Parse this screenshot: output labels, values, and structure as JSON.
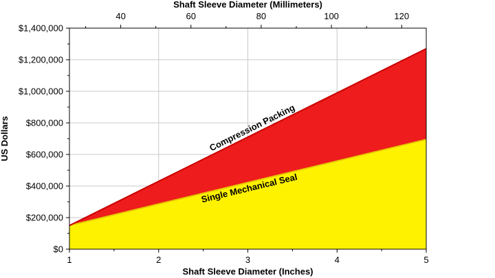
{
  "chart_data": {
    "type": "area",
    "xlabel": "Shaft Sleeve Diameter (Inches)",
    "x2label": "Shaft Sleeve Diameter (Millimeters)",
    "ylabel": "US Dollars",
    "xlim": [
      1,
      5
    ],
    "x_ticks": [
      1,
      2,
      3,
      4,
      5
    ],
    "x2lim_mm": [
      25.4,
      127
    ],
    "x2_ticks": [
      40,
      60,
      80,
      100,
      120
    ],
    "x2_tick_labels": [
      "40",
      "60",
      "80",
      "100",
      "120"
    ],
    "ylim": [
      0,
      1400000
    ],
    "y_ticks": [
      0,
      200000,
      400000,
      600000,
      800000,
      1000000,
      1200000,
      1400000
    ],
    "y_tick_labels": [
      "$0",
      "$200,000",
      "$400,000",
      "$600,000",
      "$800,000",
      "$1,000,000",
      "$1,200,000",
      "$1,400,000"
    ],
    "grid": true,
    "series": [
      {
        "name": "Single Mechanical Seal",
        "color": "#FFF200",
        "line_color": "#E6C800",
        "x": [
          1,
          5
        ],
        "y": [
          150000,
          695000
        ]
      },
      {
        "name": "Compression Packing",
        "color": "#EE1C1C",
        "line_color": "#C80000",
        "x": [
          1,
          5
        ],
        "y": [
          150000,
          1270000
        ]
      }
    ],
    "annotations": [
      {
        "text": "Compression Packing",
        "series": "Compression Packing",
        "x": 3.08
      },
      {
        "text": "Single Mechanical Seal",
        "series": "Single Mechanical Seal",
        "x": 3.0
      }
    ]
  }
}
